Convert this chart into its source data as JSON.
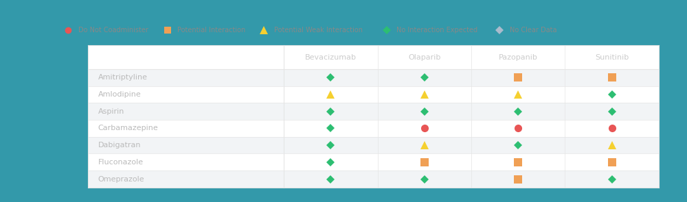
{
  "bg_outer": "#3399aa",
  "bg_inner": "#f5f5f5",
  "columns": [
    "Bevacizumab",
    "Olaparib",
    "Pazopanib",
    "Sunitinib"
  ],
  "rows": [
    "Amitriptyline",
    "Amlodipine",
    "Aspirin",
    "Carbamazepine",
    "Dabigatran",
    "Fluconazole",
    "Omeprazole"
  ],
  "data": [
    [
      "green_diamond",
      "green_diamond",
      "orange_square",
      "orange_square"
    ],
    [
      "yellow_triangle",
      "yellow_triangle",
      "yellow_triangle",
      "green_diamond"
    ],
    [
      "green_diamond",
      "green_diamond",
      "green_diamond",
      "green_diamond"
    ],
    [
      "green_diamond",
      "red_circle",
      "red_circle",
      "red_circle"
    ],
    [
      "green_diamond",
      "yellow_triangle",
      "green_diamond",
      "yellow_triangle"
    ],
    [
      "green_diamond",
      "orange_square",
      "orange_square",
      "orange_square"
    ],
    [
      "green_diamond",
      "green_diamond",
      "orange_square",
      "green_diamond"
    ]
  ],
  "legend": [
    {
      "label": "Do Not Coadminister",
      "type": "red_circle"
    },
    {
      "label": "Potential Interaction",
      "type": "orange_square"
    },
    {
      "label": "Potential Weak Interaction",
      "type": "yellow_triangle"
    },
    {
      "label": "No Interaction Expected",
      "type": "green_diamond"
    },
    {
      "label": "No Clear Data",
      "type": "gray_diamond"
    }
  ],
  "colors": {
    "red_circle": "#e85555",
    "orange_square": "#f0a055",
    "yellow_triangle": "#f5d030",
    "green_diamond": "#2dbe72",
    "gray_diamond": "#aabbcc"
  },
  "text_color_row": "#bbbbbb",
  "text_color_col": "#cccccc",
  "cell_line_color": "#e5e5e5",
  "legend_text_color": "#888888"
}
